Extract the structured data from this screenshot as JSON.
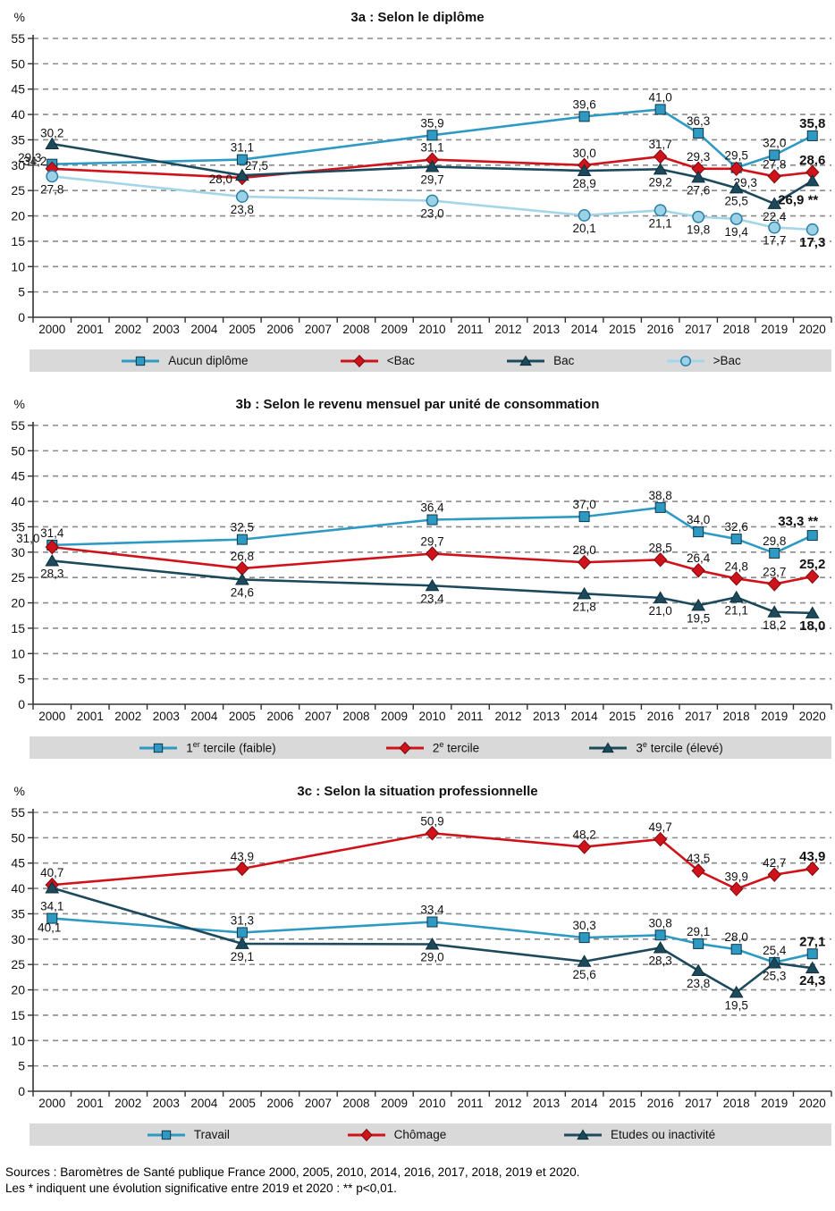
{
  "footer": {
    "line1": "Sources : Baromètres de Santé publique France 2000, 2005, 2010, 2014, 2016, 2017, 2018, 2019 et 2020.",
    "line2": "Les * indiquent une évolution significative entre 2019 et 2020 : ** p<0,01."
  },
  "colors": {
    "blue": "#2E9AC4",
    "red": "#D0121A",
    "dark": "#1C4A5C",
    "light": "#A5D5E8",
    "light_fill": "#9BD2E7",
    "legend_bg": "#D9D9D9",
    "grid": "#8a8a8a",
    "axis": "#333333"
  },
  "axis": {
    "percent_label": "%",
    "y_ticks": [
      "0",
      "5",
      "10",
      "15",
      "20",
      "25",
      "30",
      "35",
      "40",
      "45",
      "50",
      "55"
    ],
    "years": [
      "2000",
      "2001",
      "2002",
      "2003",
      "2004",
      "2005",
      "2006",
      "2007",
      "2008",
      "2009",
      "2010",
      "2011",
      "2012",
      "2013",
      "2014",
      "2015",
      "2016",
      "2017",
      "2018",
      "2019",
      "2020"
    ]
  },
  "chart_data": [
    {
      "type": "line",
      "title": "3a : Selon le diplôme",
      "ylabel": "%",
      "ylim": [
        0,
        55
      ],
      "grid": "dashed-horizontal",
      "legend_position": "bottom",
      "x": [
        2000,
        2005,
        2010,
        2014,
        2016,
        2017,
        2018,
        2019,
        2020
      ],
      "series": [
        {
          "name": "Aucun diplôme",
          "marker": "square",
          "color_key": "blue",
          "label_side": "above",
          "values": [
            30.2,
            31.1,
            35.9,
            39.6,
            41.0,
            36.3,
            29.5,
            32.0,
            35.8
          ]
        },
        {
          "name": "<Bac",
          "marker": "diamond",
          "color_key": "red",
          "label_side": "above",
          "values": [
            29.3,
            27.5,
            31.1,
            30.0,
            31.7,
            29.3,
            29.3,
            27.8,
            28.6
          ]
        },
        {
          "name": "Bac",
          "marker": "triangle",
          "color_key": "dark",
          "label_side": "below",
          "values": [
            34.2,
            28.0,
            29.7,
            28.9,
            29.2,
            27.6,
            25.5,
            22.4,
            26.9
          ],
          "last_label_suffix": " **"
        },
        {
          "name": ">Bac",
          "marker": "circle",
          "color_key": "light",
          "label_side": "below",
          "values": [
            27.8,
            23.8,
            23.0,
            20.1,
            21.1,
            19.8,
            19.4,
            17.7,
            17.3
          ]
        }
      ],
      "legend": [
        {
          "pre": "Aucun diplôme",
          "sup": "",
          "post": ""
        },
        {
          "pre": "<Bac",
          "sup": "",
          "post": ""
        },
        {
          "pre": "Bac",
          "sup": "",
          "post": ""
        },
        {
          "pre": ">Bac",
          "sup": "",
          "post": ""
        }
      ]
    },
    {
      "type": "line",
      "title": "3b : Selon le revenu mensuel par unité de consommation",
      "ylabel": "%",
      "ylim": [
        0,
        55
      ],
      "grid": "dashed-horizontal",
      "legend_position": "bottom",
      "x": [
        2000,
        2005,
        2010,
        2014,
        2016,
        2017,
        2018,
        2019,
        2020
      ],
      "series": [
        {
          "name": "1er tercile (faible)",
          "marker": "square",
          "color_key": "blue",
          "label_side": "above",
          "values": [
            31.4,
            32.5,
            36.4,
            37.0,
            38.8,
            34.0,
            32.6,
            29.8,
            33.3
          ],
          "last_label_suffix": " **"
        },
        {
          "name": "2e tercile",
          "marker": "diamond",
          "color_key": "red",
          "label_side": "above",
          "values": [
            31.0,
            26.8,
            29.7,
            28.0,
            28.5,
            26.4,
            24.8,
            23.7,
            25.2
          ]
        },
        {
          "name": "3e tercile (élevé)",
          "marker": "triangle",
          "color_key": "dark",
          "label_side": "below",
          "values": [
            28.3,
            24.6,
            23.4,
            21.8,
            21.0,
            19.5,
            21.1,
            18.2,
            18.0
          ]
        }
      ],
      "legend": [
        {
          "pre": "1",
          "sup": "er",
          "post": " tercile (faible)"
        },
        {
          "pre": "2",
          "sup": "e",
          "post": " tercile"
        },
        {
          "pre": "3",
          "sup": "e",
          "post": " tercile (élevé)"
        }
      ]
    },
    {
      "type": "line",
      "title": "3c : Selon la situation professionnelle",
      "ylabel": "%",
      "ylim": [
        0,
        55
      ],
      "grid": "dashed-horizontal",
      "legend_position": "bottom",
      "x": [
        2000,
        2005,
        2010,
        2014,
        2016,
        2017,
        2018,
        2019,
        2020
      ],
      "series": [
        {
          "name": "Travail",
          "marker": "square",
          "color_key": "blue",
          "label_side": "above",
          "values": [
            34.1,
            31.3,
            33.4,
            30.3,
            30.8,
            29.1,
            28.0,
            25.4,
            27.1
          ]
        },
        {
          "name": "Chômage",
          "marker": "diamond",
          "color_key": "red",
          "label_side": "above",
          "values": [
            40.7,
            43.9,
            50.9,
            48.2,
            49.7,
            43.5,
            39.9,
            42.7,
            43.9
          ]
        },
        {
          "name": "Etudes ou inactivité",
          "marker": "triangle",
          "color_key": "dark",
          "label_side": "below",
          "values": [
            40.1,
            29.1,
            29.0,
            25.6,
            28.3,
            23.8,
            19.5,
            25.3,
            24.3
          ]
        }
      ],
      "legend": [
        {
          "pre": "Travail",
          "sup": "",
          "post": ""
        },
        {
          "pre": "Chômage",
          "sup": "",
          "post": ""
        },
        {
          "pre": "Etudes ou inactivité",
          "sup": "",
          "post": ""
        }
      ]
    }
  ]
}
